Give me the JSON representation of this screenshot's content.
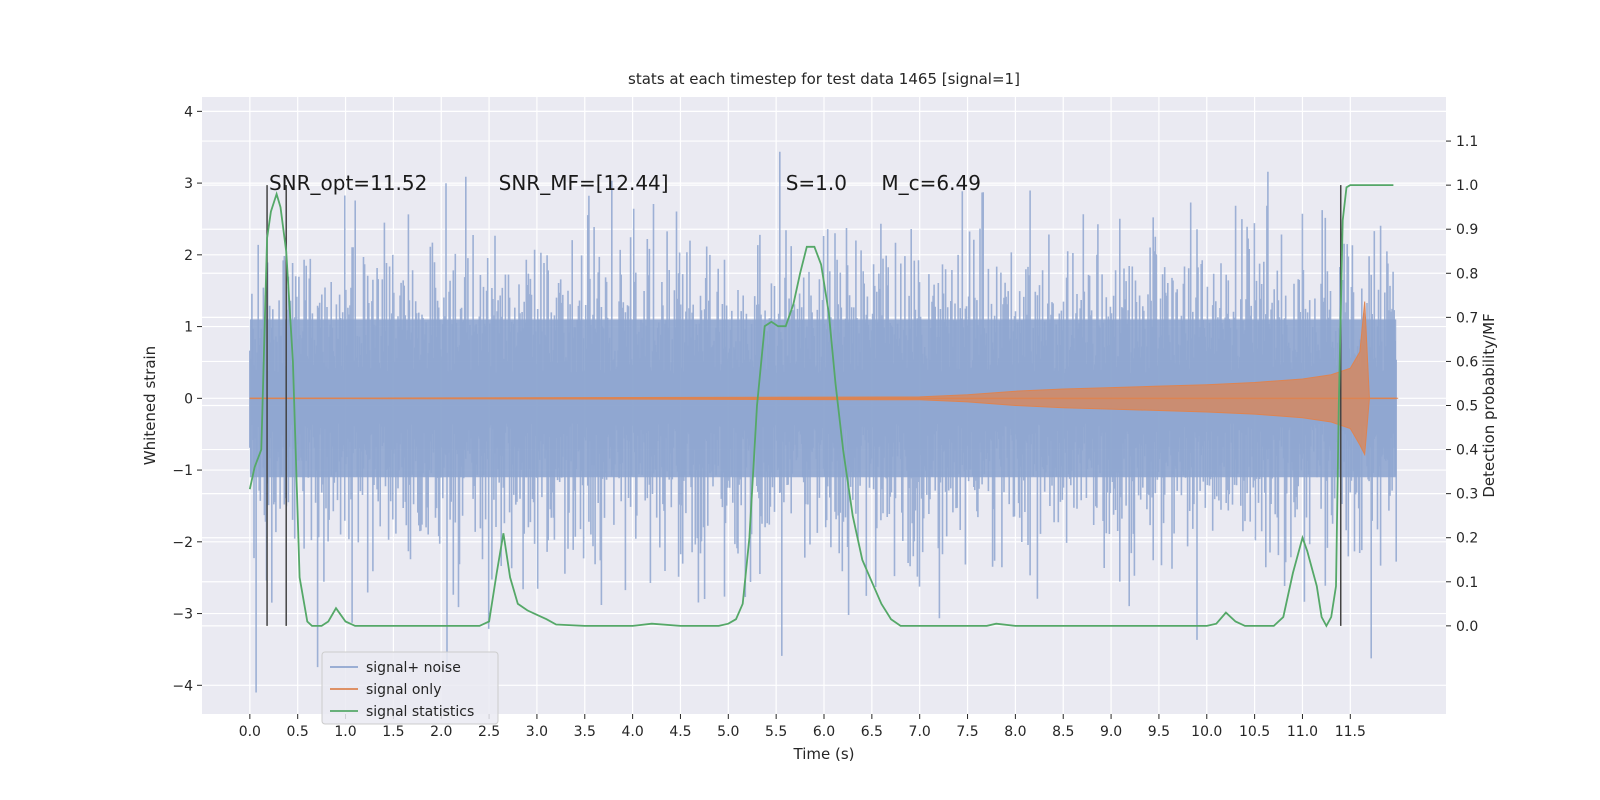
{
  "chart_data": {
    "type": "line",
    "title": "stats at each timestep for test data 1465 [signal=1]",
    "xlabel": "Time (s)",
    "ylabel": "Whitened strain",
    "y2label": "Detection probability/MF",
    "xlim": [
      -0.5,
      12.5
    ],
    "ylim": [
      -4.4,
      4.2
    ],
    "y2lim": [
      -0.2,
      1.2
    ],
    "x_ticks": [
      "0.0",
      "0.5",
      "1.0",
      "1.5",
      "2.0",
      "2.5",
      "3.0",
      "3.5",
      "4.0",
      "4.5",
      "5.0",
      "5.5",
      "6.0",
      "6.5",
      "7.0",
      "7.5",
      "8.0",
      "8.5",
      "9.0",
      "9.5",
      "10.0",
      "10.5",
      "11.0",
      "11.5"
    ],
    "y_ticks": [
      "−4",
      "−3",
      "−2",
      "−1",
      "0",
      "1",
      "2",
      "3",
      "4"
    ],
    "y2_ticks": [
      "0.0",
      "0.1",
      "0.2",
      "0.3",
      "0.4",
      "0.5",
      "0.6",
      "0.7",
      "0.8",
      "0.9",
      "1.0",
      "1.1"
    ],
    "grid": true,
    "legend_position": "bottom-left",
    "colors": {
      "background": "#eaeaf2",
      "grid": "#ffffff",
      "noise": "#8fa6d0",
      "signal": "#dd8452",
      "stats": "#55a868",
      "vline": "#444444"
    },
    "annotations": [
      {
        "text": "SNR_opt=11.52",
        "x": 0.2,
        "y": 3.0
      },
      {
        "text": "SNR_MF=[12.44]",
        "x": 2.6,
        "y": 3.0
      },
      {
        "text": "S=1.0",
        "x": 5.6,
        "y": 3.0
      },
      {
        "text": "M_c=6.49",
        "x": 6.6,
        "y": 3.0
      }
    ],
    "vertical_lines": [
      0.18,
      0.38,
      11.4
    ],
    "series": [
      {
        "name": "signal+ noise",
        "axis": "left",
        "description_range": [
          -4.1,
          3.6
        ]
      },
      {
        "name": "signal only",
        "axis": "left",
        "envelope": {
          "x": [
            0.0,
            7.0,
            7.5,
            8.0,
            8.5,
            9.0,
            9.5,
            10.0,
            10.5,
            11.0,
            11.3,
            11.5,
            11.6,
            11.65,
            11.7,
            12.0
          ],
          "amp": [
            0.0,
            0.02,
            0.05,
            0.1,
            0.13,
            0.15,
            0.17,
            0.19,
            0.22,
            0.27,
            0.33,
            0.42,
            0.65,
            1.35,
            0.0,
            0.0
          ]
        }
      },
      {
        "name": "signal statistics",
        "axis": "right",
        "x": [
          0.0,
          0.05,
          0.12,
          0.18,
          0.22,
          0.28,
          0.32,
          0.38,
          0.45,
          0.52,
          0.6,
          0.65,
          0.75,
          0.82,
          0.9,
          1.0,
          1.1,
          1.5,
          2.0,
          2.4,
          2.5,
          2.58,
          2.65,
          2.72,
          2.8,
          2.9,
          3.0,
          3.1,
          3.2,
          3.5,
          4.0,
          4.2,
          4.5,
          4.9,
          5.0,
          5.08,
          5.15,
          5.22,
          5.3,
          5.38,
          5.45,
          5.52,
          5.6,
          5.68,
          5.75,
          5.82,
          5.9,
          5.97,
          6.05,
          6.12,
          6.2,
          6.3,
          6.4,
          6.5,
          6.6,
          6.7,
          6.8,
          7.0,
          7.5,
          7.7,
          7.8,
          8.0,
          9.0,
          10.0,
          10.1,
          10.2,
          10.3,
          10.4,
          10.6,
          10.7,
          10.8,
          10.9,
          11.0,
          11.05,
          11.1,
          11.15,
          11.2,
          11.25,
          11.3,
          11.35,
          11.38,
          11.42,
          11.46,
          11.5,
          11.6,
          11.8,
          11.95
        ],
        "y": [
          0.31,
          0.36,
          0.4,
          0.88,
          0.94,
          0.98,
          0.95,
          0.85,
          0.6,
          0.11,
          0.01,
          0.0,
          0.0,
          0.01,
          0.04,
          0.01,
          0.0,
          0.0,
          0.0,
          0.0,
          0.01,
          0.12,
          0.21,
          0.11,
          0.05,
          0.035,
          0.025,
          0.015,
          0.003,
          0.0,
          0.0,
          0.005,
          0.0,
          0.0,
          0.005,
          0.015,
          0.05,
          0.2,
          0.5,
          0.68,
          0.69,
          0.68,
          0.68,
          0.73,
          0.8,
          0.86,
          0.86,
          0.82,
          0.71,
          0.55,
          0.4,
          0.25,
          0.15,
          0.1,
          0.05,
          0.015,
          0.0,
          0.0,
          0.0,
          0.0,
          0.005,
          0.0,
          0.0,
          0.0,
          0.005,
          0.03,
          0.01,
          0.0,
          0.0,
          0.0,
          0.02,
          0.12,
          0.2,
          0.17,
          0.13,
          0.09,
          0.02,
          0.0,
          0.02,
          0.09,
          0.5,
          0.92,
          0.995,
          1.0,
          1.0,
          1.0,
          1.0
        ]
      }
    ],
    "legend": [
      "signal+ noise",
      "signal only",
      "signal statistics"
    ]
  }
}
